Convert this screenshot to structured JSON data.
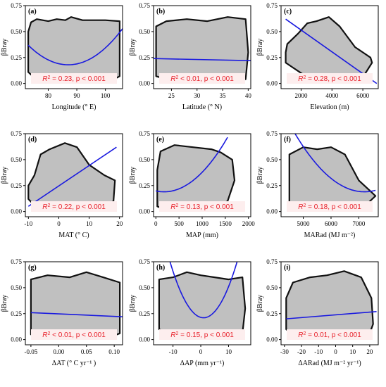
{
  "chart_data": [
    {
      "type": "scatter",
      "panel": "(a)",
      "xlabel": "Longitude (° E)",
      "ylabel": "βBray",
      "xlim": [
        72,
        106
      ],
      "ylim": [
        -0.05,
        0.75
      ],
      "xticks": [
        80,
        90,
        100
      ],
      "yticks": [
        0.0,
        0.25,
        0.5,
        0.75
      ],
      "cloud": {
        "x": [
          73,
          75,
          80,
          85,
          89,
          93,
          97,
          103,
          105,
          105,
          100,
          92,
          88,
          86,
          83,
          80,
          76,
          74,
          73
        ],
        "y": [
          0.11,
          0.06,
          0.05,
          0.04,
          0.05,
          0.04,
          0.05,
          0.04,
          0.07,
          0.6,
          0.61,
          0.61,
          0.64,
          0.61,
          0.62,
          0.6,
          0.62,
          0.59,
          0.5
        ]
      },
      "fit": {
        "form": "quadratic",
        "a": 0.000965,
        "vertex_x": 87,
        "vertex_y": 0.18,
        "x_range": [
          73,
          106
        ]
      },
      "r2": "0.23",
      "stat_text": {
        "r_squared": "R",
        "superscript": "2",
        "rest": " = 0.23, p < 0.001"
      }
    },
    {
      "type": "scatter",
      "panel": "(b)",
      "xlabel": "Latitude (° N)",
      "ylabel": "βBray",
      "xlim": [
        21.5,
        40.5
      ],
      "ylim": [
        -0.05,
        0.75
      ],
      "xticks": [
        25,
        30,
        35,
        40
      ],
      "yticks": [
        0.0,
        0.25,
        0.5,
        0.75
      ],
      "cloud": {
        "x": [
          22,
          24,
          28,
          32,
          36,
          39.5,
          40,
          39.5,
          36,
          32,
          28,
          24,
          22
        ],
        "y": [
          0.07,
          0.04,
          0.03,
          0.04,
          0.03,
          0.04,
          0.3,
          0.62,
          0.64,
          0.6,
          0.62,
          0.6,
          0.55
        ]
      },
      "fit": {
        "form": "linear",
        "x0": 21.5,
        "y0": 0.24,
        "x1": 40.5,
        "y1": 0.22
      },
      "r2": "< 0.01",
      "stat_text": {
        "r_squared": "R",
        "superscript": "2",
        "rest": " < 0.01, p < 0.001"
      }
    },
    {
      "type": "scatter",
      "panel": "(c)",
      "xlabel": "Elevation (m)",
      "ylabel": "βBray",
      "xlim": [
        700,
        7000
      ],
      "ylim": [
        -0.05,
        0.75
      ],
      "xticks": [
        2000,
        4000,
        6000
      ],
      "yticks": [
        0.0,
        0.25,
        0.5,
        0.75
      ],
      "cloud": {
        "x": [
          1000,
          1500,
          2200,
          3000,
          4000,
          5000,
          6000,
          6600,
          6500,
          6000,
          5500,
          4500,
          3800,
          3000,
          2400,
          1800,
          1100,
          1000
        ],
        "y": [
          0.2,
          0.15,
          0.08,
          0.04,
          0.02,
          0.03,
          0.06,
          0.2,
          0.25,
          0.3,
          0.35,
          0.55,
          0.64,
          0.6,
          0.58,
          0.48,
          0.38,
          0.3
        ]
      },
      "fit": {
        "form": "linear",
        "x0": 1000,
        "y0": 0.62,
        "x1": 6900,
        "y1": 0.0
      },
      "r2": "0.28",
      "stat_text": {
        "r_squared": "R",
        "superscript": "2",
        "rest": " = 0.28, p < 0.001"
      }
    },
    {
      "type": "scatter",
      "panel": "(d)",
      "xlabel": "MAT (° C)",
      "ylabel": "βBray",
      "xlim": [
        -11,
        21
      ],
      "ylim": [
        -0.05,
        0.75
      ],
      "xticks": [
        -10,
        0,
        10,
        20
      ],
      "yticks": [
        0.0,
        0.25,
        0.5,
        0.75
      ],
      "cloud": {
        "x": [
          -10,
          -8,
          -5,
          0,
          5,
          10,
          15,
          18,
          18.5,
          15,
          10,
          6,
          2,
          -3,
          -6,
          -8,
          -10
        ],
        "y": [
          0.12,
          0.06,
          0.03,
          0.02,
          0.02,
          0.03,
          0.05,
          0.1,
          0.3,
          0.35,
          0.45,
          0.62,
          0.66,
          0.6,
          0.55,
          0.35,
          0.25
        ]
      },
      "fit": {
        "form": "linear",
        "x0": -10,
        "y0": 0.05,
        "x1": 19,
        "y1": 0.62
      },
      "r2": "0.22",
      "stat_text": {
        "r_squared": "R",
        "superscript": "2",
        "rest": " = 0.22, p < 0.001"
      }
    },
    {
      "type": "scatter",
      "panel": "(e)",
      "xlabel": "MAP (mm)",
      "ylabel": "βBray",
      "xlim": [
        -50,
        2050
      ],
      "ylim": [
        -0.05,
        0.75
      ],
      "xticks": [
        0,
        500,
        1000,
        1500,
        2000
      ],
      "yticks": [
        0.0,
        0.25,
        0.5,
        0.75
      ],
      "cloud": {
        "x": [
          30,
          200,
          600,
          1000,
          1300,
          1550,
          1700,
          1650,
          1400,
          1200,
          800,
          400,
          100,
          30
        ],
        "y": [
          0.05,
          0.02,
          0.01,
          0.02,
          0.04,
          0.1,
          0.3,
          0.5,
          0.57,
          0.6,
          0.62,
          0.64,
          0.58,
          0.4
        ]
      },
      "fit": {
        "form": "quadratic",
        "a": 2.8e-07,
        "vertex_x": 180,
        "vertex_y": 0.19,
        "x_range": [
          0,
          1550
        ]
      },
      "r2": "0.13",
      "stat_text": {
        "r_squared": "R",
        "superscript": "2",
        "rest": " = 0.13, p < 0.001"
      }
    },
    {
      "type": "scatter",
      "panel": "(f)",
      "xlabel": "MARad (MJ m⁻²)",
      "ylabel": "βBray",
      "xlim": [
        4200,
        7700
      ],
      "ylim": [
        -0.05,
        0.75
      ],
      "xticks": [
        5000,
        6000,
        7000
      ],
      "yticks": [
        0.0,
        0.25,
        0.5,
        0.75
      ],
      "cloud": {
        "x": [
          4500,
          5000,
          5500,
          6000,
          6500,
          7200,
          7600,
          7400,
          7000,
          6500,
          6000,
          5500,
          5000,
          4500
        ],
        "y": [
          0.08,
          0.02,
          0.01,
          0.02,
          0.03,
          0.05,
          0.15,
          0.2,
          0.3,
          0.55,
          0.62,
          0.6,
          0.62,
          0.55
        ]
      },
      "fit": {
        "form": "quadratic",
        "a": 9e-08,
        "vertex_x": 7200,
        "vertex_y": 0.19,
        "x_range": [
          4500,
          7600
        ]
      },
      "r2": "0.18",
      "stat_text": {
        "r_squared": "R",
        "superscript": "2",
        "rest": " = 0.18, p < 0.001"
      }
    },
    {
      "type": "scatter",
      "panel": "(g)",
      "xlabel": "ΔAT (° C yr⁻¹ )",
      "ylabel": "βBray",
      "xlim": [
        -0.06,
        0.115
      ],
      "ylim": [
        -0.05,
        0.75
      ],
      "xticks": [
        -0.05,
        0.0,
        0.05,
        0.1
      ],
      "yticks": [
        0.0,
        0.25,
        0.5,
        0.75
      ],
      "cloud": {
        "x": [
          -0.05,
          -0.02,
          0.02,
          0.06,
          0.09,
          0.11,
          0.11,
          0.08,
          0.05,
          0.02,
          -0.02,
          -0.05
        ],
        "y": [
          0.05,
          0.02,
          0.02,
          0.03,
          0.02,
          0.06,
          0.55,
          0.6,
          0.65,
          0.6,
          0.62,
          0.58
        ]
      },
      "fit": {
        "form": "linear",
        "x0": -0.05,
        "y0": 0.26,
        "x1": 0.115,
        "y1": 0.22
      },
      "r2": "< 0.01",
      "stat_text": {
        "r_squared": "R",
        "superscript": "2",
        "rest": " < 0.01, p < 0.001"
      }
    },
    {
      "type": "scatter",
      "panel": "(h)",
      "xlabel": "ΔAP (mm yr⁻¹)",
      "ylabel": "βBray",
      "xlim": [
        -17,
        18
      ],
      "ylim": [
        -0.05,
        0.75
      ],
      "xticks": [
        -10,
        0,
        10
      ],
      "yticks": [
        0.0,
        0.25,
        0.5,
        0.75
      ],
      "cloud": {
        "x": [
          -15,
          -10,
          -5,
          0,
          5,
          10,
          15,
          16,
          15,
          10,
          5,
          0,
          -5,
          -10,
          -15
        ],
        "y": [
          0.1,
          0.03,
          0.02,
          0.01,
          0.02,
          0.03,
          0.06,
          0.3,
          0.6,
          0.58,
          0.6,
          0.62,
          0.65,
          0.6,
          0.58
        ]
      },
      "fit": {
        "form": "quadratic",
        "a": 0.0037,
        "vertex_x": 1,
        "vertex_y": 0.21,
        "x_range": [
          -17,
          18
        ]
      },
      "r2": "0.15",
      "stat_text": {
        "r_squared": "R",
        "superscript": "2",
        "rest": " = 0.15, p < 0.001"
      }
    },
    {
      "type": "scatter",
      "panel": "(i)",
      "xlabel": "ΔARad (MJ m⁻² yr⁻¹)",
      "ylabel": "βBray",
      "xlim": [
        -32,
        25
      ],
      "ylim": [
        -0.05,
        0.75
      ],
      "xticks": [
        -30,
        -20,
        -10,
        0,
        10,
        20
      ],
      "yticks": [
        0.0,
        0.25,
        0.5,
        0.75
      ],
      "cloud": {
        "x": [
          -29,
          -25,
          -15,
          -5,
          5,
          15,
          20,
          22,
          21,
          15,
          5,
          -5,
          -15,
          -25,
          -29
        ],
        "y": [
          0.1,
          0.04,
          0.02,
          0.02,
          0.03,
          0.03,
          0.06,
          0.15,
          0.4,
          0.6,
          0.66,
          0.62,
          0.6,
          0.55,
          0.4
        ]
      },
      "fit": {
        "form": "linear",
        "x0": -29,
        "y0": 0.2,
        "x1": 24,
        "y1": 0.27
      },
      "r2": "0.01",
      "stat_text": {
        "r_squared": "R",
        "superscript": "2",
        "rest": " = 0.01, p < 0.001"
      }
    }
  ],
  "colors": {
    "cloud_fill": "#c0c0c0",
    "cloud_edge": "#111111",
    "fit_line": "#1a1adf",
    "stat_text": "#e8202a",
    "stat_bg": "#fdeeee"
  }
}
